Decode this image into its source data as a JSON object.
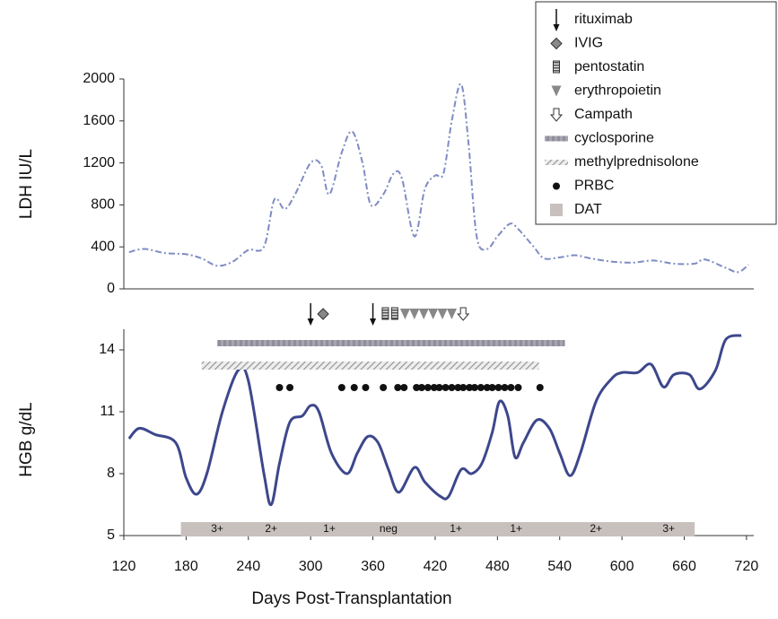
{
  "chart_data": [
    {
      "type": "line",
      "ylabel": "LDH IU/L",
      "ylim": [
        0,
        2000
      ],
      "yticks": [
        0,
        400,
        800,
        1200,
        1600,
        2000
      ],
      "color": "#7f8cc4",
      "x": [
        125,
        140,
        160,
        180,
        195,
        210,
        225,
        240,
        255,
        265,
        275,
        285,
        300,
        310,
        318,
        330,
        340,
        350,
        358,
        370,
        380,
        388,
        400,
        410,
        420,
        428,
        436,
        445,
        452,
        460,
        470,
        480,
        492,
        500,
        515,
        525,
        540,
        555,
        570,
        590,
        610,
        630,
        650,
        670,
        680,
        700,
        712,
        722
      ],
      "values": [
        350,
        380,
        340,
        330,
        290,
        220,
        260,
        370,
        400,
        850,
        760,
        900,
        1200,
        1180,
        900,
        1300,
        1500,
        1200,
        800,
        900,
        1100,
        1050,
        500,
        950,
        1080,
        1100,
        1600,
        1950,
        1400,
        500,
        380,
        500,
        620,
        570,
        400,
        290,
        300,
        320,
        290,
        260,
        250,
        270,
        240,
        240,
        280,
        200,
        160,
        230
      ]
    },
    {
      "type": "line",
      "ylabel": "HGB g/dL",
      "xlabel": "Days Post-Transplantation",
      "xlim": [
        120,
        727
      ],
      "xticks": [
        120,
        180,
        240,
        300,
        360,
        420,
        480,
        540,
        600,
        660,
        720
      ],
      "ylim": [
        5,
        15
      ],
      "yticks": [
        5,
        8,
        11,
        14
      ],
      "color": "#3d478c",
      "x": [
        125,
        135,
        150,
        170,
        180,
        190,
        200,
        215,
        230,
        240,
        255,
        262,
        270,
        280,
        292,
        300,
        308,
        320,
        335,
        345,
        355,
        365,
        375,
        385,
        400,
        410,
        425,
        433,
        445,
        455,
        465,
        475,
        482,
        490,
        497,
        505,
        518,
        530,
        540,
        550,
        560,
        575,
        590,
        600,
        615,
        628,
        640,
        650,
        665,
        675,
        690,
        700,
        715
      ],
      "values": [
        9.7,
        10.2,
        9.9,
        9.5,
        7.8,
        7.0,
        8.0,
        11.0,
        13.0,
        12.5,
        8.0,
        6.5,
        8.5,
        10.5,
        10.8,
        11.3,
        11.0,
        9.0,
        8.0,
        9.0,
        9.8,
        9.5,
        8.2,
        7.1,
        8.3,
        7.6,
        6.9,
        6.9,
        8.2,
        8.0,
        8.5,
        10.0,
        11.5,
        10.8,
        8.8,
        9.5,
        10.6,
        10.2,
        9.0,
        7.9,
        9.0,
        11.5,
        12.6,
        12.9,
        12.9,
        13.3,
        12.2,
        12.8,
        12.8,
        12.1,
        13.0,
        14.5,
        14.7
      ],
      "markers": [
        {
          "name": "rituximab",
          "x": [
            300,
            360
          ]
        },
        {
          "name": "IVIG",
          "x": [
            312
          ]
        },
        {
          "name": "pentostatin",
          "x": [
            372,
            381
          ]
        },
        {
          "name": "erythropoietin",
          "x": [
            391,
            400,
            409,
            418,
            427,
            436
          ]
        },
        {
          "name": "Campath",
          "x": [
            447
          ]
        },
        {
          "name": "cyclosporine",
          "range": [
            210,
            545
          ]
        },
        {
          "name": "methylprednisolone",
          "range": [
            195,
            520
          ]
        },
        {
          "name": "PRBC",
          "x": [
            270,
            280,
            330,
            342,
            353,
            370,
            384,
            390,
            402,
            407,
            413,
            419,
            424,
            430,
            436,
            442,
            447,
            453,
            458,
            464,
            470,
            475,
            481,
            487,
            493,
            500,
            521
          ]
        },
        {
          "name": "DAT",
          "range": [
            175,
            670
          ],
          "labels": [
            "3+",
            "2+",
            "1+",
            "neg",
            "1+",
            "1+",
            "2+",
            "3+"
          ],
          "label_x": [
            210,
            262,
            318,
            375,
            440,
            498,
            575,
            645
          ]
        }
      ]
    }
  ]
}
